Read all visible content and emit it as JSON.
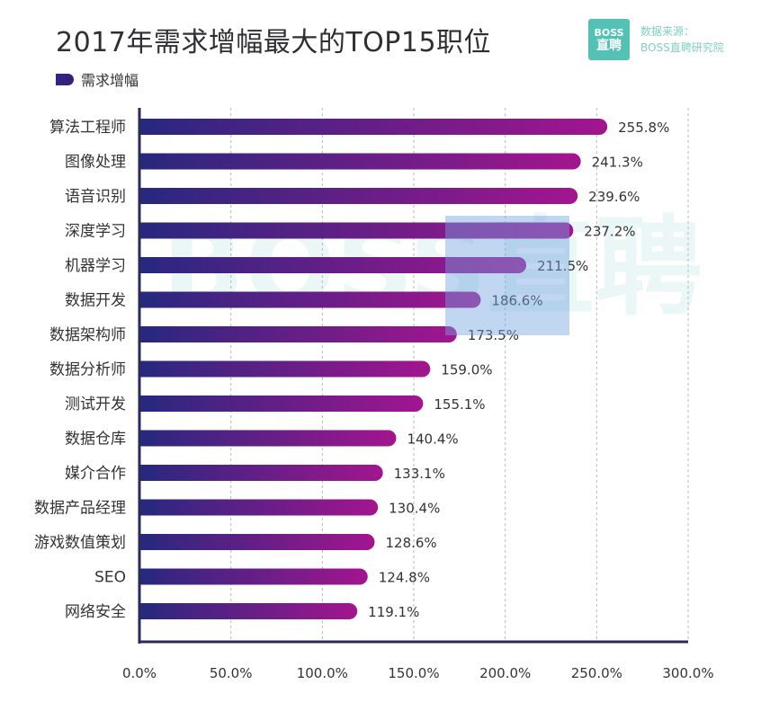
{
  "title": "2017年需求增幅最大的TOP15职位",
  "legend": {
    "label": "需求增幅"
  },
  "brand": {
    "logo_top": "BOSS",
    "logo_bottom": "直聘",
    "source_line1": "数据来源：",
    "source_line2": "BOSS直聘研究院"
  },
  "watermark": "BOSS直聘",
  "colors": {
    "bar_start": "#28287e",
    "bar_end": "#a3158f",
    "axis": "#2a2a5a",
    "grid": "#b8b8b8",
    "label": "#333333"
  },
  "chart_data": {
    "type": "bar",
    "orientation": "horizontal",
    "title": "2017年需求增幅最大的TOP15职位",
    "series": [
      {
        "name": "需求增幅",
        "categories": [
          "算法工程师",
          "图像处理",
          "语音识别",
          "深度学习",
          "机器学习",
          "数据开发",
          "数据架构师",
          "数据分析师",
          "测试开发",
          "数据仓库",
          "媒介合作",
          "数据产品经理",
          "游戏数值策划",
          "SEO",
          "网络安全"
        ],
        "values": [
          255.8,
          241.3,
          239.6,
          237.2,
          211.5,
          186.6,
          173.5,
          159.0,
          155.1,
          140.4,
          133.1,
          130.4,
          128.6,
          124.8,
          119.1
        ],
        "value_labels": [
          "255.8%",
          "241.3%",
          "239.6%",
          "237.2%",
          "211.5%",
          "186.6%",
          "173.5%",
          "159.0%",
          "155.1%",
          "140.4%",
          "133.1%",
          "130.4%",
          "128.6%",
          "124.8%",
          "119.1%"
        ]
      }
    ],
    "x_ticks": [
      "0.0%",
      "50.0%",
      "100.0%",
      "150.0%",
      "200.0%",
      "250.0%",
      "300.0%"
    ],
    "xlim": [
      0,
      300
    ],
    "grid": "vertical dashed",
    "legend_position": "top-left"
  }
}
